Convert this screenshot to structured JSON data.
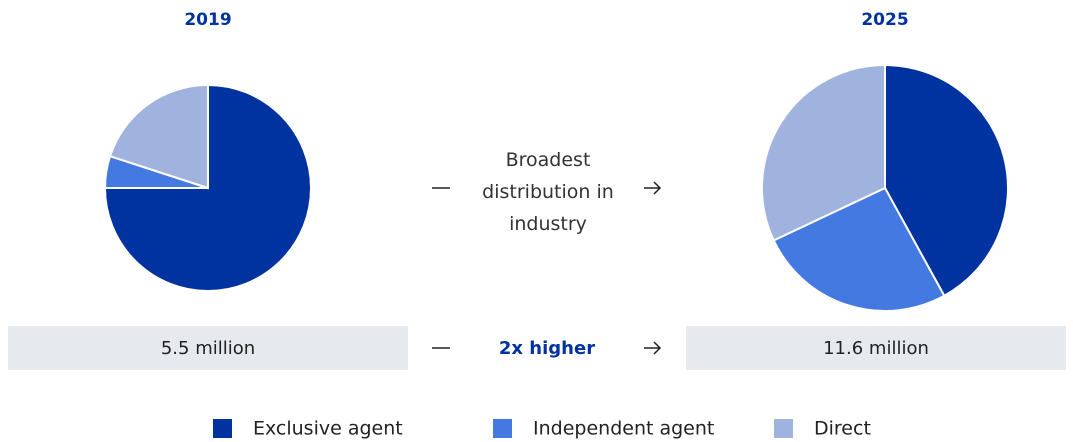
{
  "chart_data": [
    {
      "type": "pie",
      "title": "2019",
      "categories": [
        "Exclusive agent",
        "Independent agent",
        "Direct"
      ],
      "values": [
        75,
        5,
        20
      ],
      "colors": [
        "#0033a0",
        "#4479e2",
        "#9fb3de"
      ]
    },
    {
      "type": "pie",
      "title": "2025",
      "categories": [
        "Exclusive agent",
        "Independent agent",
        "Direct"
      ],
      "values": [
        42,
        26,
        32
      ],
      "colors": [
        "#0033a0",
        "#4479e2",
        "#9fb3de"
      ]
    }
  ],
  "note": "Broadest distribution in industry",
  "footer": {
    "left": "5.5 million",
    "middle": "2x higher",
    "right": "11.6 million"
  }
}
